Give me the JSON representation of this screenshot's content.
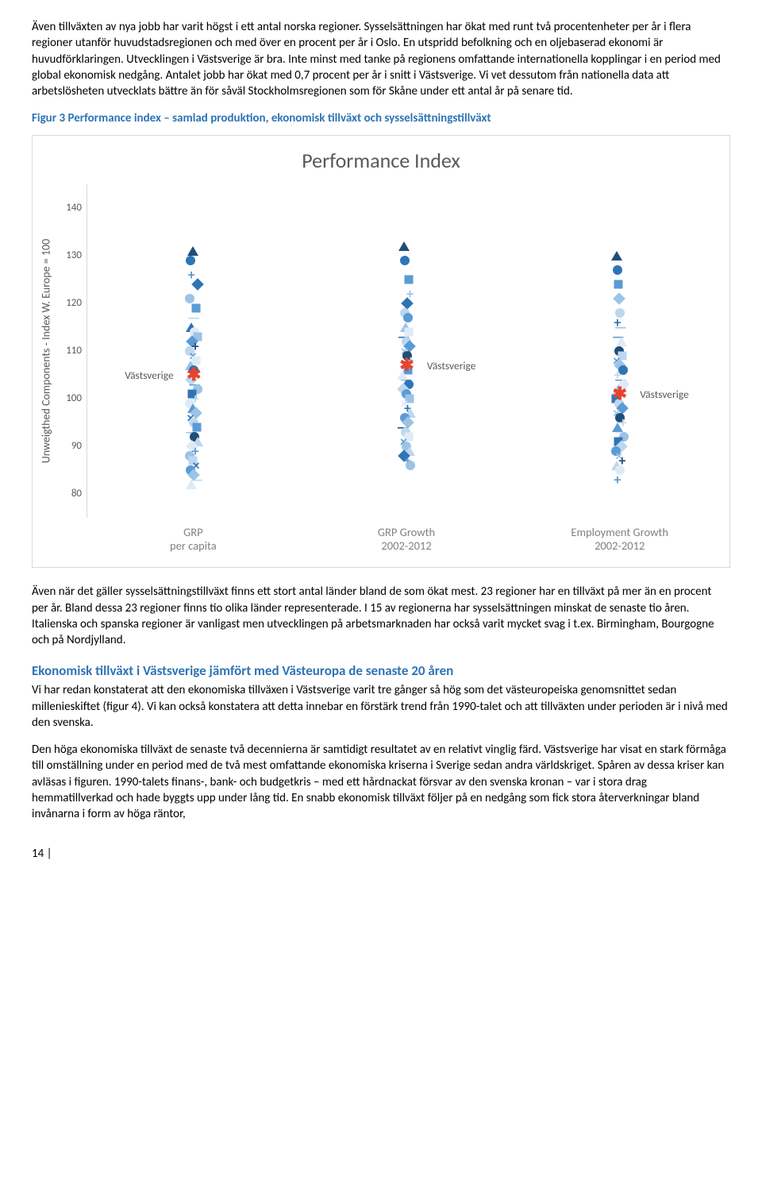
{
  "para1": "Även tillväxten av nya jobb har varit högst i ett antal norska regioner. Sysselsättningen har ökat med runt två procentenheter per år i flera regioner utanför huvudstadsregionen och med över en procent per år i Oslo. En utspridd befolkning och en oljebaserad ekonomi är huvudförklaringen. Utvecklingen i Västsverige är bra. Inte minst med tanke på regionens omfattande internationella kopplingar i en period med global ekonomisk nedgång. Antalet jobb har ökat med 0,7 procent per år i snitt i Västsverige. Vi vet dessutom från nationella data att arbetslösheten utvecklats bättre än för såväl Stockholmsregionen som för Skåne under ett antal år på senare tid.",
  "fig_caption": "Figur 3 Performance index – samlad produktion, ekonomisk tillväxt och sysselsättningstillväxt",
  "chart": {
    "title": "Performance Index",
    "y_label": "Unweigthed Components - Index W. Europe = 100",
    "y_ticks": [
      "80",
      "90",
      "100",
      "110",
      "120",
      "130",
      "140"
    ],
    "ylim": [
      75,
      145
    ],
    "series": [
      {
        "x_label": "GRP\nper capita"
      },
      {
        "x_label": "GRP Growth\n2002-2012"
      },
      {
        "x_label": "Employment Growth\n2002-2012"
      }
    ],
    "highlight_label": "Västsverige",
    "highlight_y": [
      105,
      107,
      101
    ],
    "highlight_color": "#e8432e",
    "marker_palette": {
      "dk1": "#1f4e79",
      "dk2": "#2e75b6",
      "md": "#5b9bd5",
      "lt1": "#9cc3e5",
      "lt2": "#bdd7ee",
      "vlt": "#deebf7",
      "gray": "#a6a6a6"
    },
    "col0": [
      {
        "y": 131,
        "s": "tri",
        "c": "dk1"
      },
      {
        "y": 129,
        "s": "dot",
        "c": "dk2"
      },
      {
        "y": 126,
        "s": "plus",
        "c": "md"
      },
      {
        "y": 124,
        "s": "diamond",
        "c": "dk2"
      },
      {
        "y": 121,
        "s": "dot",
        "c": "lt1"
      },
      {
        "y": 119,
        "s": "square",
        "c": "md"
      },
      {
        "y": 117,
        "s": "dash",
        "c": "lt2"
      },
      {
        "y": 115,
        "s": "tri",
        "c": "dk2"
      },
      {
        "y": 114,
        "s": "dot",
        "c": "vlt"
      },
      {
        "y": 113,
        "s": "square",
        "c": "lt1"
      },
      {
        "y": 112,
        "s": "diamond",
        "c": "md"
      },
      {
        "y": 111,
        "s": "plus",
        "c": "dk1"
      },
      {
        "y": 110,
        "s": "dot",
        "c": "lt2"
      },
      {
        "y": 109,
        "s": "cross",
        "c": "md"
      },
      {
        "y": 108,
        "s": "square",
        "c": "vlt"
      },
      {
        "y": 107,
        "s": "tri",
        "c": "lt1"
      },
      {
        "y": 106,
        "s": "dot",
        "c": "dk2"
      },
      {
        "y": 104,
        "s": "diamond",
        "c": "lt2"
      },
      {
        "y": 103,
        "s": "dash",
        "c": "md"
      },
      {
        "y": 102,
        "s": "dot",
        "c": "lt1"
      },
      {
        "y": 101,
        "s": "square",
        "c": "dk2"
      },
      {
        "y": 100,
        "s": "plus",
        "c": "lt2"
      },
      {
        "y": 99,
        "s": "dot",
        "c": "vlt"
      },
      {
        "y": 98,
        "s": "tri",
        "c": "md"
      },
      {
        "y": 97,
        "s": "diamond",
        "c": "lt1"
      },
      {
        "y": 96,
        "s": "cross",
        "c": "dk2"
      },
      {
        "y": 95,
        "s": "dot",
        "c": "lt2"
      },
      {
        "y": 94,
        "s": "square",
        "c": "md"
      },
      {
        "y": 93,
        "s": "dash",
        "c": "lt1"
      },
      {
        "y": 92,
        "s": "dot",
        "c": "dk1"
      },
      {
        "y": 91,
        "s": "tri",
        "c": "lt2"
      },
      {
        "y": 90,
        "s": "diamond",
        "c": "vlt"
      },
      {
        "y": 89,
        "s": "plus",
        "c": "md"
      },
      {
        "y": 88,
        "s": "dot",
        "c": "lt1"
      },
      {
        "y": 87,
        "s": "square",
        "c": "lt2"
      },
      {
        "y": 86,
        "s": "cross",
        "c": "dk2"
      },
      {
        "y": 85,
        "s": "dot",
        "c": "md"
      },
      {
        "y": 84,
        "s": "diamond",
        "c": "lt1"
      },
      {
        "y": 83,
        "s": "dash",
        "c": "lt2"
      },
      {
        "y": 82,
        "s": "tri",
        "c": "vlt"
      }
    ],
    "col1": [
      {
        "y": 132,
        "s": "tri",
        "c": "dk1"
      },
      {
        "y": 129,
        "s": "dot",
        "c": "dk2"
      },
      {
        "y": 125,
        "s": "square",
        "c": "md"
      },
      {
        "y": 122,
        "s": "plus",
        "c": "lt1"
      },
      {
        "y": 120,
        "s": "diamond",
        "c": "dk2"
      },
      {
        "y": 118,
        "s": "dot",
        "c": "lt2"
      },
      {
        "y": 117,
        "s": "dot",
        "c": "md"
      },
      {
        "y": 115,
        "s": "tri",
        "c": "lt1"
      },
      {
        "y": 114,
        "s": "square",
        "c": "vlt"
      },
      {
        "y": 113,
        "s": "dash",
        "c": "dk2"
      },
      {
        "y": 112,
        "s": "dot",
        "c": "lt2"
      },
      {
        "y": 111,
        "s": "diamond",
        "c": "md"
      },
      {
        "y": 110,
        "s": "cross",
        "c": "lt1"
      },
      {
        "y": 109,
        "s": "dot",
        "c": "dk1"
      },
      {
        "y": 108,
        "s": "plus",
        "c": "lt2"
      },
      {
        "y": 106,
        "s": "square",
        "c": "md"
      },
      {
        "y": 105,
        "s": "tri",
        "c": "vlt"
      },
      {
        "y": 104,
        "s": "dash",
        "c": "lt1"
      },
      {
        "y": 103,
        "s": "dot",
        "c": "dk2"
      },
      {
        "y": 102,
        "s": "diamond",
        "c": "lt2"
      },
      {
        "y": 101,
        "s": "dot",
        "c": "md"
      },
      {
        "y": 100,
        "s": "square",
        "c": "lt1"
      },
      {
        "y": 99,
        "s": "cross",
        "c": "vlt"
      },
      {
        "y": 98,
        "s": "plus",
        "c": "dk2"
      },
      {
        "y": 97,
        "s": "tri",
        "c": "lt2"
      },
      {
        "y": 96,
        "s": "dot",
        "c": "md"
      },
      {
        "y": 95,
        "s": "diamond",
        "c": "lt1"
      },
      {
        "y": 94,
        "s": "dash",
        "c": "dk1"
      },
      {
        "y": 93,
        "s": "dot",
        "c": "lt2"
      },
      {
        "y": 92,
        "s": "square",
        "c": "vlt"
      },
      {
        "y": 91,
        "s": "cross",
        "c": "md"
      },
      {
        "y": 90,
        "s": "dot",
        "c": "lt1"
      },
      {
        "y": 89,
        "s": "tri",
        "c": "lt2"
      },
      {
        "y": 88,
        "s": "diamond",
        "c": "dk2"
      },
      {
        "y": 87,
        "s": "plus",
        "c": "md"
      },
      {
        "y": 86,
        "s": "dot",
        "c": "lt1"
      }
    ],
    "col2": [
      {
        "y": 130,
        "s": "tri",
        "c": "dk1"
      },
      {
        "y": 127,
        "s": "dot",
        "c": "dk2"
      },
      {
        "y": 124,
        "s": "square",
        "c": "md"
      },
      {
        "y": 121,
        "s": "diamond",
        "c": "lt1"
      },
      {
        "y": 118,
        "s": "dot",
        "c": "lt2"
      },
      {
        "y": 116,
        "s": "plus",
        "c": "dk2"
      },
      {
        "y": 115,
        "s": "dash",
        "c": "lt1"
      },
      {
        "y": 113,
        "s": "dash",
        "c": "md"
      },
      {
        "y": 112,
        "s": "tri",
        "c": "vlt"
      },
      {
        "y": 110,
        "s": "dot",
        "c": "dk1"
      },
      {
        "y": 109,
        "s": "square",
        "c": "lt2"
      },
      {
        "y": 108,
        "s": "cross",
        "c": "md"
      },
      {
        "y": 107,
        "s": "diamond",
        "c": "lt1"
      },
      {
        "y": 106,
        "s": "dot",
        "c": "dk2"
      },
      {
        "y": 105,
        "s": "plus",
        "c": "lt2"
      },
      {
        "y": 104,
        "s": "dash",
        "c": "md"
      },
      {
        "y": 103,
        "s": "dot",
        "c": "vlt"
      },
      {
        "y": 102,
        "s": "tri",
        "c": "lt1"
      },
      {
        "y": 100,
        "s": "square",
        "c": "dk2"
      },
      {
        "y": 99,
        "s": "dot",
        "c": "lt2"
      },
      {
        "y": 98,
        "s": "diamond",
        "c": "md"
      },
      {
        "y": 97,
        "s": "cross",
        "c": "lt1"
      },
      {
        "y": 96,
        "s": "dot",
        "c": "dk1"
      },
      {
        "y": 95,
        "s": "plus",
        "c": "lt2"
      },
      {
        "y": 94,
        "s": "tri",
        "c": "md"
      },
      {
        "y": 93,
        "s": "dash",
        "c": "vlt"
      },
      {
        "y": 92,
        "s": "dot",
        "c": "lt1"
      },
      {
        "y": 91,
        "s": "square",
        "c": "dk2"
      },
      {
        "y": 90,
        "s": "diamond",
        "c": "lt2"
      },
      {
        "y": 89,
        "s": "dot",
        "c": "md"
      },
      {
        "y": 88,
        "s": "cross",
        "c": "lt1"
      },
      {
        "y": 87,
        "s": "plus",
        "c": "dk1"
      },
      {
        "y": 86,
        "s": "tri",
        "c": "lt2"
      },
      {
        "y": 85,
        "s": "dot",
        "c": "vlt"
      },
      {
        "y": 83,
        "s": "plus",
        "c": "md"
      }
    ]
  },
  "para2": "Även när det gäller sysselsättningstillväxt finns ett stort antal länder bland de som ökat mest. 23 regioner har en tillväxt på mer än en procent per år. Bland dessa 23 regioner finns tio olika länder representerade. I 15 av regionerna har sysselsättningen minskat de senaste tio åren. Italienska och spanska regioner är vanligast men utvecklingen på arbetsmarknaden har också varit mycket svag i t.ex. Birmingham, Bourgogne och på Nordjylland.",
  "section_head": "Ekonomisk tillväxt i Västsverige jämfört med Västeuropa de senaste 20 åren",
  "para3": "Vi har redan konstaterat att den ekonomiska tillväxen i Västsverige varit tre gånger så hög som det västeuropeiska genomsnittet sedan millenieskiftet (figur 4). Vi kan också konstatera att detta innebar en förstärk trend från 1990-talet och att tillväxten under perioden är i nivå med den svenska.",
  "para4": "Den höga ekonomiska tillväxt de senaste två decennierna är samtidigt resultatet av en relativt vinglig färd. Västsverige har visat en stark förmåga till omställning under en period med de två mest omfattande ekonomiska kriserna i Sverige sedan andra världskriget. Spåren av dessa kriser kan avläsas i figuren. 1990-talets finans-, bank- och budgetkris – med ett hårdnackat försvar av den svenska kronan – var i stora drag hemmatillverkad och hade byggts upp under lång tid. En snabb ekonomisk tillväxt följer på en nedgång som fick stora återverkningar bland invånarna i form av höga räntor,",
  "page_num": "14 |"
}
